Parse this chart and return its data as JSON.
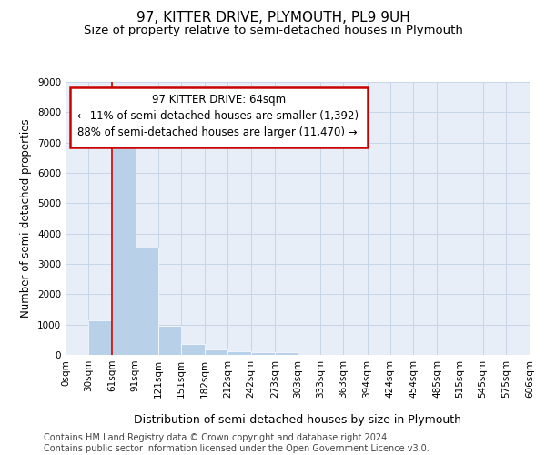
{
  "title": "97, KITTER DRIVE, PLYMOUTH, PL9 9UH",
  "subtitle": "Size of property relative to semi-detached houses in Plymouth",
  "xlabel": "Distribution of semi-detached houses by size in Plymouth",
  "ylabel": "Number of semi-detached properties",
  "footer_line1": "Contains HM Land Registry data © Crown copyright and database right 2024.",
  "footer_line2": "Contains public sector information licensed under the Open Government Licence v3.0.",
  "annotation_title": "97 KITTER DRIVE: 64sqm",
  "annotation_line1": "← 11% of semi-detached houses are smaller (1,392)",
  "annotation_line2": "88% of semi-detached houses are larger (11,470) →",
  "bar_left_edges": [
    0,
    30,
    61,
    91,
    121,
    151,
    182,
    212,
    242,
    273,
    303,
    333,
    363,
    394,
    424,
    454,
    485,
    515,
    545,
    575
  ],
  "bar_heights": [
    0,
    1150,
    6900,
    3550,
    975,
    350,
    175,
    130,
    100,
    100,
    0,
    0,
    0,
    0,
    0,
    0,
    0,
    0,
    0,
    0
  ],
  "bar_widths": [
    30,
    31,
    30,
    30,
    30,
    31,
    30,
    30,
    31,
    30,
    30,
    30,
    31,
    30,
    30,
    31,
    30,
    30,
    30,
    31
  ],
  "bar_color": "#b8d0e8",
  "bar_edge_color": "#ffffff",
  "red_line_x": 61,
  "annotation_box_color": "#ffffff",
  "annotation_box_edge_color": "#cc0000",
  "ylim": [
    0,
    9000
  ],
  "yticks": [
    0,
    1000,
    2000,
    3000,
    4000,
    5000,
    6000,
    7000,
    8000,
    9000
  ],
  "xtick_labels": [
    "0sqm",
    "30sqm",
    "61sqm",
    "91sqm",
    "121sqm",
    "151sqm",
    "182sqm",
    "212sqm",
    "242sqm",
    "273sqm",
    "303sqm",
    "333sqm",
    "363sqm",
    "394sqm",
    "424sqm",
    "454sqm",
    "485sqm",
    "515sqm",
    "545sqm",
    "575sqm",
    "606sqm"
  ],
  "xtick_positions": [
    0,
    30,
    61,
    91,
    121,
    151,
    182,
    212,
    242,
    273,
    303,
    333,
    363,
    394,
    424,
    454,
    485,
    515,
    545,
    575,
    606
  ],
  "grid_color": "#c8d4e8",
  "background_color": "#e8eef8",
  "title_fontsize": 11,
  "subtitle_fontsize": 9.5,
  "xlabel_fontsize": 9,
  "ylabel_fontsize": 8.5,
  "tick_fontsize": 7.5,
  "annotation_fontsize": 8.5,
  "footer_fontsize": 7
}
